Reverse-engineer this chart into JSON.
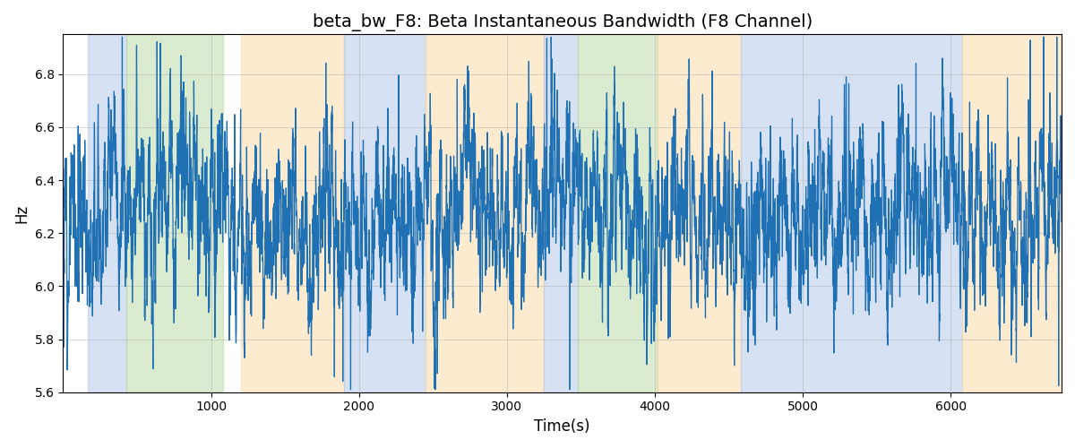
{
  "title": "beta_bw_F8: Beta Instantaneous Bandwidth (F8 Channel)",
  "xlabel": "Time(s)",
  "ylabel": "Hz",
  "ylim": [
    5.6,
    6.95
  ],
  "xlim": [
    0,
    6750
  ],
  "line_color": "#2070b4",
  "line_width": 0.9,
  "bg_bands": [
    {
      "xmin": 170,
      "xmax": 430,
      "color": "#aec6e8",
      "alpha": 0.5
    },
    {
      "xmin": 430,
      "xmax": 1080,
      "color": "#b6d9a0",
      "alpha": 0.5
    },
    {
      "xmin": 1200,
      "xmax": 1900,
      "color": "#fdd9a0",
      "alpha": 0.5
    },
    {
      "xmin": 1900,
      "xmax": 2450,
      "color": "#aec6e8",
      "alpha": 0.5
    },
    {
      "xmin": 2450,
      "xmax": 3250,
      "color": "#fdd9a0",
      "alpha": 0.5
    },
    {
      "xmin": 3250,
      "xmax": 3480,
      "color": "#aec6e8",
      "alpha": 0.5
    },
    {
      "xmin": 3480,
      "xmax": 4020,
      "color": "#b6d9a0",
      "alpha": 0.5
    },
    {
      "xmin": 4020,
      "xmax": 4580,
      "color": "#fdd9a0",
      "alpha": 0.5
    },
    {
      "xmin": 4580,
      "xmax": 6080,
      "color": "#aec6e8",
      "alpha": 0.5
    },
    {
      "xmin": 6080,
      "xmax": 6750,
      "color": "#fdd9a0",
      "alpha": 0.5
    }
  ],
  "grid_color": "#b0b0b0",
  "grid_alpha": 0.7,
  "seed": 12,
  "n_points": 6750,
  "mean": 6.28,
  "std": 0.1,
  "title_fontsize": 14,
  "label_fontsize": 12,
  "tick_fontsize": 10
}
